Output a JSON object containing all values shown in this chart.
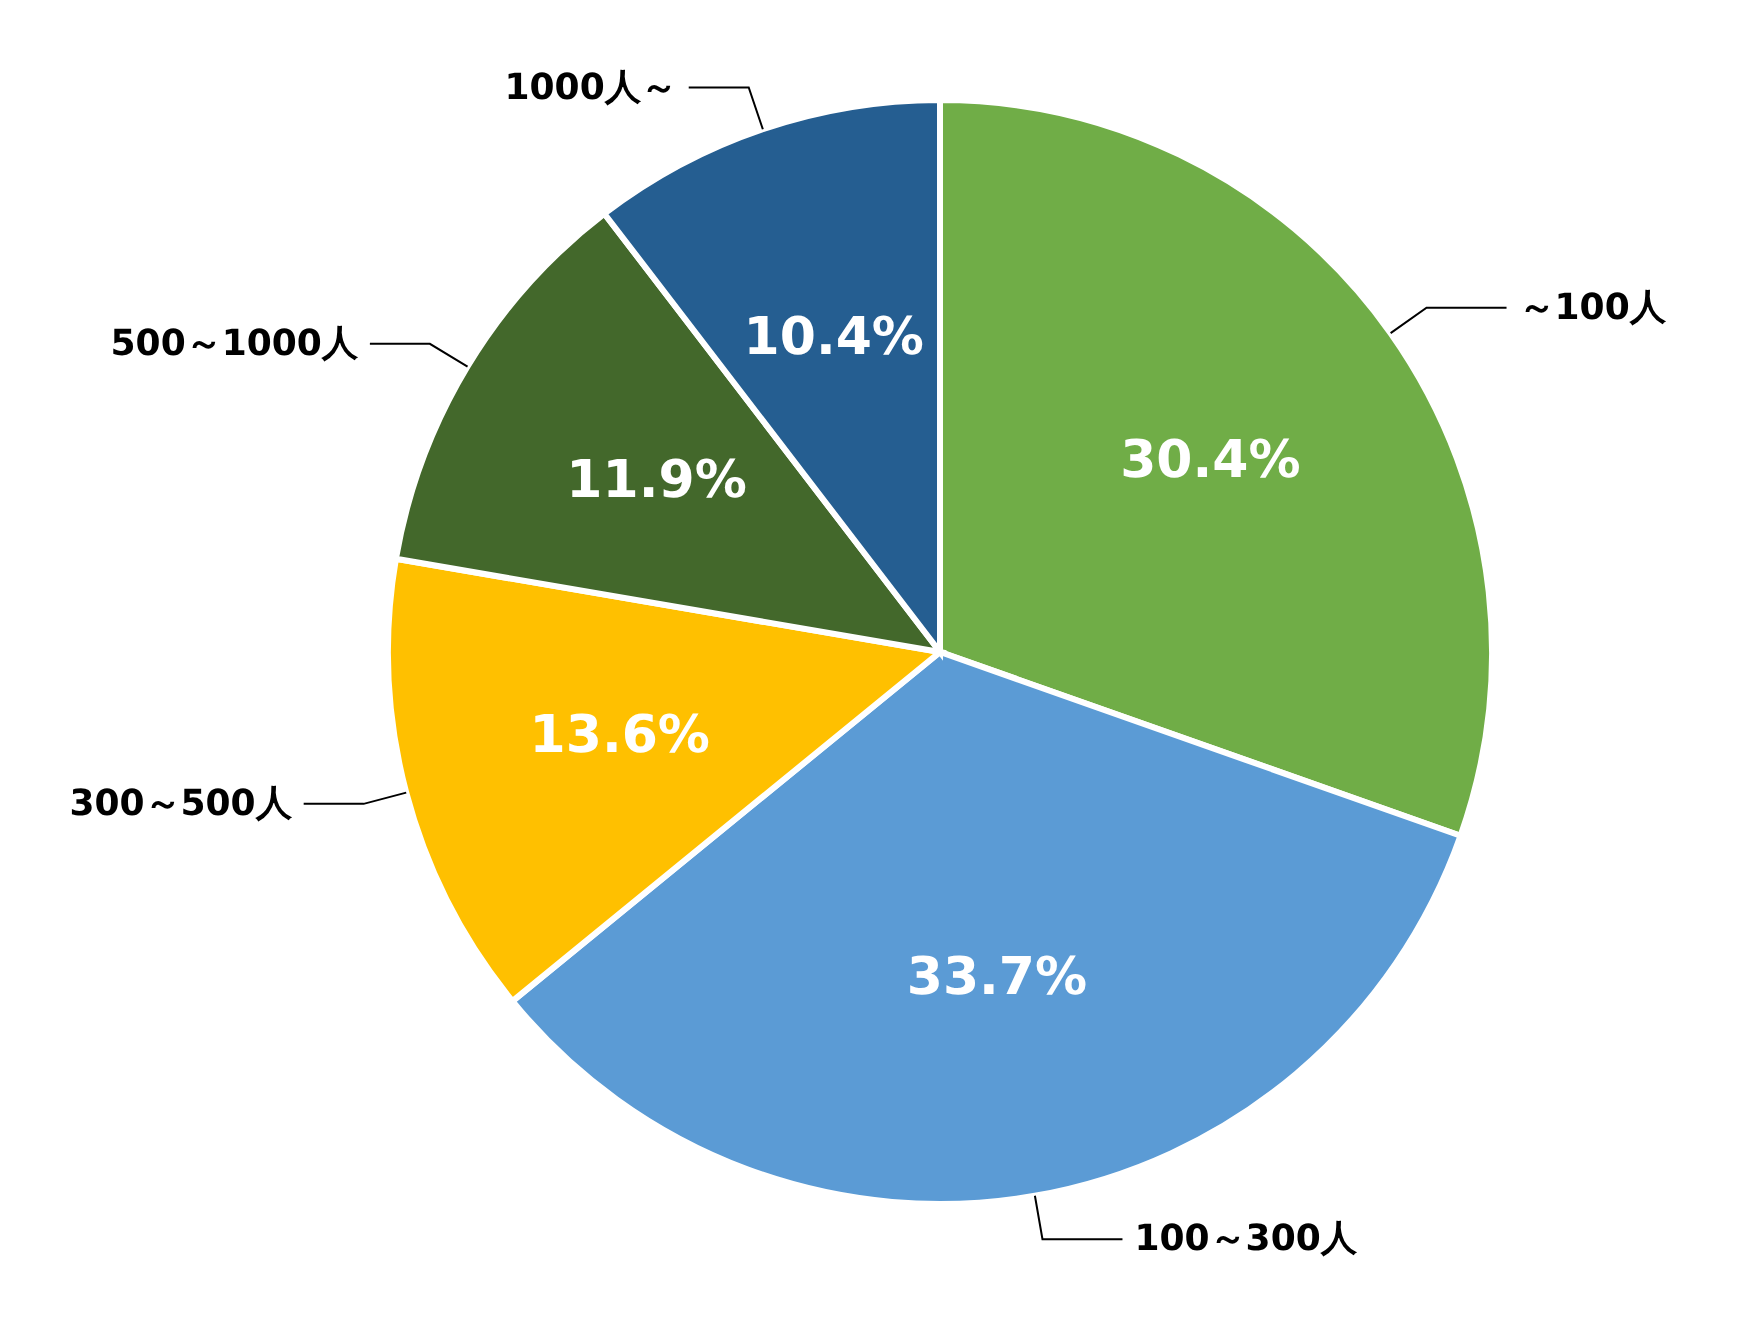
{
  "chart_data": {
    "type": "pie",
    "categories": [
      "～100人",
      "100～300人",
      "300～500人",
      "500～1000人",
      "1000人～"
    ],
    "values": [
      30.4,
      33.7,
      13.6,
      11.9,
      10.4
    ],
    "colors": [
      "#70ad47",
      "#5b9bd5",
      "#ffc000",
      "#43682b",
      "#255e91"
    ],
    "value_labels": [
      "30.4%",
      "33.7%",
      "13.6%",
      "11.9%",
      "10.4%"
    ],
    "legend": false
  }
}
